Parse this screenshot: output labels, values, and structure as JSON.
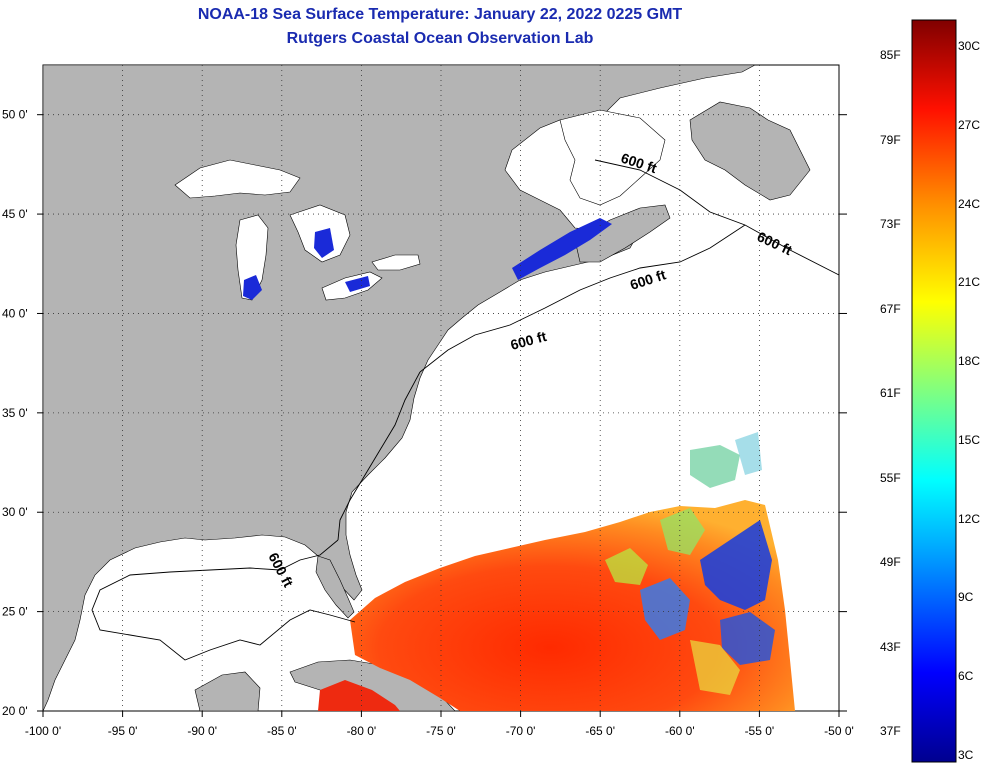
{
  "title": {
    "line1": "NOAA-18 Sea Surface Temperature:  January 22, 2022 0225 GMT",
    "line2": "Rutgers Coastal Ocean Observation Lab"
  },
  "map": {
    "lat_ticks": [
      "50 0'",
      "45 0'",
      "40 0'",
      "35 0'",
      "30 0'",
      "25 0'",
      "20 0'"
    ],
    "lat_values": [
      50,
      45,
      40,
      35,
      30,
      25,
      20
    ],
    "lon_ticks": [
      "-100 0'",
      "-95 0'",
      "-90 0'",
      "-85 0'",
      "-80 0'",
      "-75 0'",
      "-70 0'",
      "-65 0'",
      "-60 0'",
      "-55 0'",
      "-50 0'"
    ],
    "lon_values": [
      -100,
      -95,
      -90,
      -85,
      -80,
      -75,
      -70,
      -65,
      -60,
      -55,
      -50
    ],
    "contour_labels": [
      "600 ft",
      "600 ft",
      "600 ft",
      "600 ft",
      "600 ft"
    ],
    "colors": {
      "land": "#b4b4b4",
      "no_data": "#ffffff",
      "cold_water": "#1530d0",
      "warm_water": "#f23a10"
    }
  },
  "colorbar": {
    "fahrenheit": [
      "85F",
      "79F",
      "73F",
      "67F",
      "61F",
      "55F",
      "49F",
      "43F",
      "37F"
    ],
    "celsius": [
      "30C",
      "27C",
      "24C",
      "21C",
      "18C",
      "15C",
      "12C",
      "9C",
      "6C",
      "3C"
    ]
  }
}
